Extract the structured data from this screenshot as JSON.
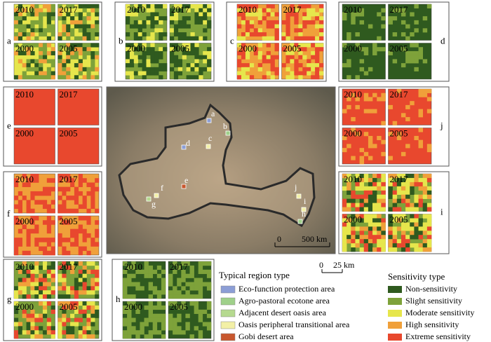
{
  "years": [
    "2010",
    "2017",
    "2000",
    "2005"
  ],
  "panel_labels": [
    "a",
    "b",
    "c",
    "d",
    "e",
    "f",
    "g",
    "h",
    "i",
    "j"
  ],
  "scale_bars": [
    {
      "start": "0",
      "end": "500 km"
    },
    {
      "start": "0",
      "end": "25 km"
    }
  ],
  "region_legend": {
    "title": "Typical region type",
    "items": [
      {
        "label": "Eco-function protection area",
        "color": "#8c9ed6"
      },
      {
        "label": "Agro-pastoral ecotone area",
        "color": "#9fd08a"
      },
      {
        "label": "Adjacent desert oasis area",
        "color": "#b5d98f"
      },
      {
        "label": "Oasis peripheral transitional area",
        "color": "#f3f0a6"
      },
      {
        "label": "Gobi desert area",
        "color": "#c8572e"
      }
    ]
  },
  "sensitivity_legend": {
    "title": "Sensitivity type",
    "items": [
      {
        "label": "Non-sensitivity",
        "color": "#2f5a1f"
      },
      {
        "label": "Slight sensitivity",
        "color": "#7ea23a"
      },
      {
        "label": "Moderate sensitivity",
        "color": "#e6e64c"
      },
      {
        "label": "High sensitivity",
        "color": "#f0a03a"
      },
      {
        "label": "Extreme sensitivity",
        "color": "#e8482e"
      }
    ]
  }
}
